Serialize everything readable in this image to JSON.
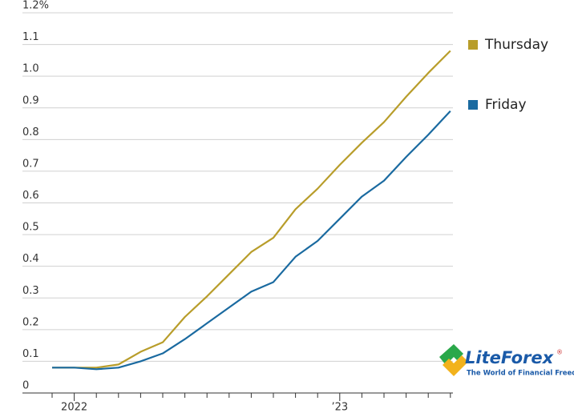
{
  "chart_data": {
    "type": "line",
    "categories": [
      null,
      "2022",
      null,
      null,
      null,
      null,
      null,
      null,
      null,
      null,
      null,
      null,
      null,
      "’23",
      null,
      null,
      null,
      null,
      null
    ],
    "series": [
      {
        "name": "Thursday",
        "color": "#b89d2a",
        "values": [
          0.08,
          0.08,
          0.08,
          0.09,
          0.13,
          0.16,
          0.24,
          0.305,
          0.375,
          0.445,
          0.49,
          0.58,
          0.645,
          0.72,
          0.79,
          0.855,
          0.935,
          1.01,
          1.08
        ]
      },
      {
        "name": "Friday",
        "color": "#1a6aa0",
        "values": [
          0.08,
          0.08,
          0.075,
          0.08,
          0.1,
          0.125,
          0.17,
          0.22,
          0.27,
          0.32,
          0.35,
          0.43,
          0.48,
          0.55,
          0.62,
          0.67,
          0.745,
          0.815,
          0.89
        ]
      }
    ],
    "ylim": [
      0,
      1.2
    ],
    "yticks": [
      0,
      0.1,
      0.2,
      0.3,
      0.4,
      0.5,
      0.6,
      0.7,
      0.8,
      0.9,
      {
        "value": 1,
        "label": "1.0"
      },
      1.1,
      {
        "value": 1.2,
        "label": "1.2%"
      }
    ],
    "grid": true,
    "legend": "right"
  },
  "watermark": {
    "name": "LiteForex",
    "mark": "®",
    "tagline": "The World of Financial Freedom"
  }
}
